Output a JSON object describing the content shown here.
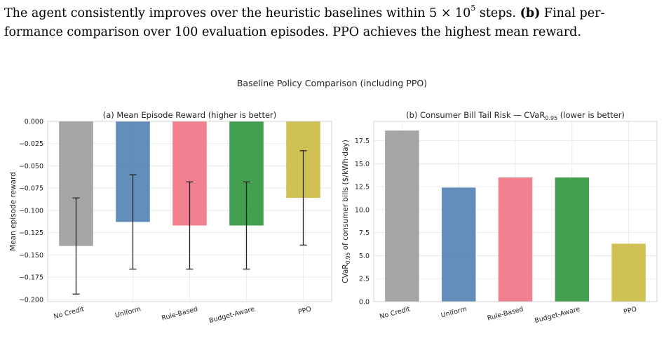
{
  "caption": {
    "line1_pre": "The agent consistently improves over the heuristic baselines within 5 × 10",
    "line1_sup": "5",
    "line1_post": " steps. ",
    "line1_bold": "(b)",
    "line1_end": " Final per-",
    "line2": "formance comparison over 100 evaluation episodes. PPO achieves the highest mean reward."
  },
  "figure": {
    "suptitle": "Baseline Policy Comparison (including PPO)"
  },
  "chart_data": [
    {
      "type": "bar",
      "title": "(a) Mean Episode Reward (higher is better)",
      "xlabel": "",
      "ylabel": "Mean episode reward",
      "categories": [
        "No Credit",
        "Uniform",
        "Rule-Based",
        "Budget-Aware",
        "PPO"
      ],
      "values": [
        -0.14,
        -0.113,
        -0.117,
        -0.117,
        -0.086
      ],
      "error": [
        0.054,
        0.053,
        0.049,
        0.049,
        0.053
      ],
      "colors": [
        "#a0a0a0",
        "#5b88b8",
        "#f07a8a",
        "#3a9a48",
        "#cdbe4c"
      ],
      "ylim": [
        -0.2025,
        0.0
      ],
      "yticks": [
        0.0,
        -0.025,
        -0.05,
        -0.075,
        -0.1,
        -0.125,
        -0.15,
        -0.175,
        -0.2
      ],
      "ytick_labels": [
        "0.000",
        "−0.025",
        "−0.050",
        "−0.075",
        "−0.100",
        "−0.125",
        "−0.150",
        "−0.175",
        "−0.200"
      ],
      "grid": true
    },
    {
      "type": "bar",
      "title_pre": "(b) Consumer Bill Tail Risk — CVaR",
      "title_sub": "0.95",
      "title_post": " (lower is better)",
      "xlabel": "",
      "ylabel_pre": "CVaR",
      "ylabel_sub": "0.95",
      "ylabel_post": " of consumer bills ($/kWh·day)",
      "categories": [
        "No Credit",
        "Uniform",
        "Rule-Based",
        "Budget-Aware",
        "PPO"
      ],
      "values": [
        18.6,
        12.4,
        13.5,
        13.5,
        6.3
      ],
      "colors": [
        "#a0a0a0",
        "#5b88b8",
        "#f07a8a",
        "#3a9a48",
        "#cdbe4c"
      ],
      "ylim": [
        0,
        19.6
      ],
      "yticks": [
        0,
        2.5,
        5,
        7.5,
        10,
        12.5,
        15,
        17.5
      ],
      "ytick_labels": [
        "0.0",
        "2.5",
        "5.0",
        "7.5",
        "10.0",
        "12.5",
        "15.0",
        "17.5"
      ],
      "grid": true
    }
  ]
}
